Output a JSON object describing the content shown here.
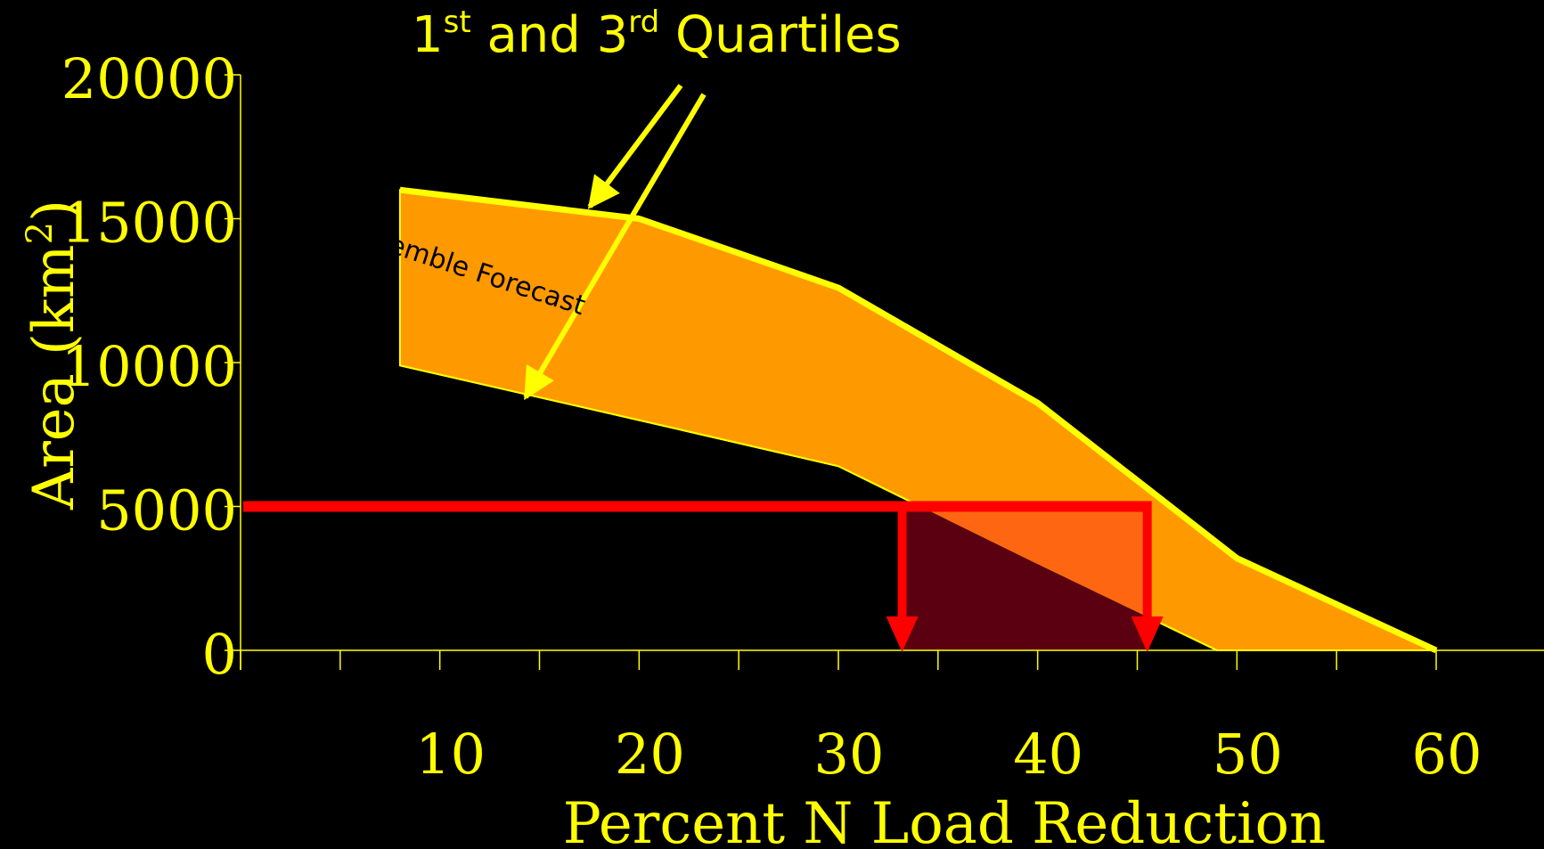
{
  "chart_data": {
    "type": "area",
    "title": "1st and 3rd Quartiles",
    "title_parts": {
      "n1": "1",
      "sup1": "st",
      "mid": " and 3",
      "sup2": "rd",
      "rest": " Quartiles"
    },
    "xlabel": "Percent N Load Reduction",
    "ylabel": "Area (km",
    "ylabel_sup": "2",
    "ylabel_close": ")",
    "xlim": [
      0,
      60
    ],
    "ylim": [
      0,
      20000
    ],
    "x_ticks": [
      10,
      20,
      30,
      40,
      50,
      60
    ],
    "y_ticks": [
      0,
      5000,
      10000,
      15000,
      20000
    ],
    "band_label": "Ensemble Forecast",
    "upper_quartile": {
      "x": [
        8,
        20,
        30,
        40,
        50,
        60
      ],
      "y": [
        16000,
        15000,
        12600,
        8600,
        3200,
        0
      ]
    },
    "lower_quartile": {
      "x": [
        8,
        20,
        30,
        40,
        49,
        60
      ],
      "y": [
        9900,
        8000,
        6400,
        3000,
        0,
        0
      ]
    },
    "threshold": 5000,
    "threshold_crossings": [
      33.2,
      45.5
    ],
    "colors": {
      "background": "#000000",
      "text": "#ffff00",
      "band_fill": "#ff9900",
      "band_edge": "#ffff00",
      "threshold_line": "#ff0000",
      "overlap_orange": "#ff6611",
      "overlap_dark": "#5a0010"
    }
  }
}
